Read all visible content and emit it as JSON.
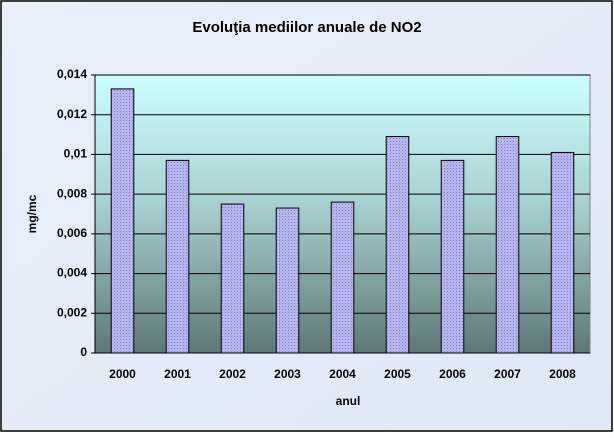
{
  "chart_data": {
    "type": "bar",
    "title": "Evoluţia mediilor anuale de NO2",
    "x_label": "anul",
    "y_label": "mg/mc",
    "categories": [
      "2000",
      "2001",
      "2002",
      "2003",
      "2004",
      "2005",
      "2006",
      "2007",
      "2008"
    ],
    "values": [
      0.0133,
      0.0097,
      0.0075,
      0.0073,
      0.0076,
      0.0109,
      0.0097,
      0.0109,
      0.0101
    ],
    "color": "#a8a8e6",
    "ylim": [
      0,
      0.014
    ],
    "yticks": [
      0,
      {
        "value": 0.002,
        "label": "0,002"
      },
      {
        "value": 0.004,
        "label": "0,004"
      },
      {
        "value": 0.006,
        "label": "0,006"
      },
      {
        "value": 0.008,
        "label": "0,008"
      },
      {
        "value": 0.01,
        "label": "0,01"
      },
      {
        "value": 0.012,
        "label": "0,012"
      },
      {
        "value": 0.014,
        "label": "0,014"
      }
    ],
    "grid": true
  }
}
